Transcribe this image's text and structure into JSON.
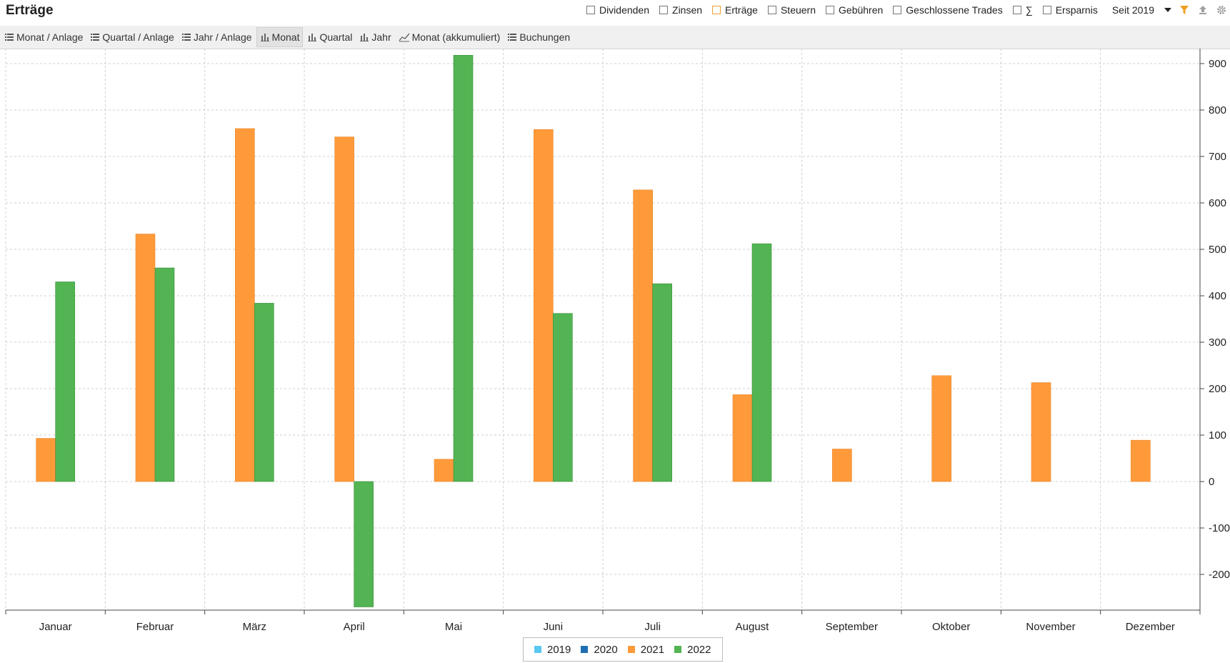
{
  "header": {
    "title": "Erträge",
    "filters": [
      {
        "label": "Dividenden",
        "checked": false
      },
      {
        "label": "Zinsen",
        "checked": false
      },
      {
        "label": "Erträge",
        "checked": true
      },
      {
        "label": "Steuern",
        "checked": false
      },
      {
        "label": "Gebühren",
        "checked": false
      },
      {
        "label": "Geschlossene Trades",
        "checked": false
      },
      {
        "label": "∑",
        "checked": false
      },
      {
        "label": "Ersparnis",
        "checked": false
      }
    ],
    "period": "Seit 2019",
    "icons": [
      "filter-icon",
      "export-icon",
      "gear-icon"
    ]
  },
  "tabs": [
    {
      "label": "Monat / Anlage",
      "icon": "list-icon",
      "active": false
    },
    {
      "label": "Quartal / Anlage",
      "icon": "list-icon",
      "active": false
    },
    {
      "label": "Jahr / Anlage",
      "icon": "list-icon",
      "active": false
    },
    {
      "label": "Monat",
      "icon": "bar-chart-icon",
      "active": true
    },
    {
      "label": "Quartal",
      "icon": "bar-chart-icon",
      "active": false
    },
    {
      "label": "Jahr",
      "icon": "bar-chart-icon",
      "active": false
    },
    {
      "label": "Monat (akkumuliert)",
      "icon": "line-chart-icon",
      "active": false
    },
    {
      "label": "Buchungen",
      "icon": "list-icon",
      "active": false
    }
  ],
  "chart_data": {
    "type": "bar",
    "categories": [
      "Januar",
      "Februar",
      "März",
      "April",
      "Mai",
      "Juni",
      "Juli",
      "August",
      "September",
      "Oktober",
      "November",
      "Dezember"
    ],
    "series": [
      {
        "name": "2019",
        "color": "#5bc8f0",
        "values": [
          0,
          0,
          0,
          0,
          0,
          0,
          0,
          0,
          0,
          0,
          0,
          0
        ]
      },
      {
        "name": "2020",
        "color": "#1f6fb4",
        "values": [
          0,
          0,
          0,
          0,
          0,
          0,
          0,
          0,
          0,
          0,
          0,
          0
        ]
      },
      {
        "name": "2021",
        "color": "#ff9a3a",
        "values": [
          93,
          533,
          760,
          742,
          48,
          758,
          628,
          187,
          70,
          228,
          213,
          89
        ]
      },
      {
        "name": "2022",
        "color": "#52b452",
        "values": [
          430,
          460,
          384,
          -270,
          918,
          362,
          426,
          512,
          0,
          0,
          0,
          0
        ]
      }
    ],
    "visible_series": [
      "2021",
      "2022"
    ],
    "ylim": [
      -280,
      920
    ],
    "yticks": [
      900,
      800,
      700,
      600,
      500,
      400,
      300,
      200,
      100,
      0,
      -100,
      -200
    ],
    "y_axis_side": "right",
    "grid": true,
    "legend_position": "bottom-center"
  }
}
